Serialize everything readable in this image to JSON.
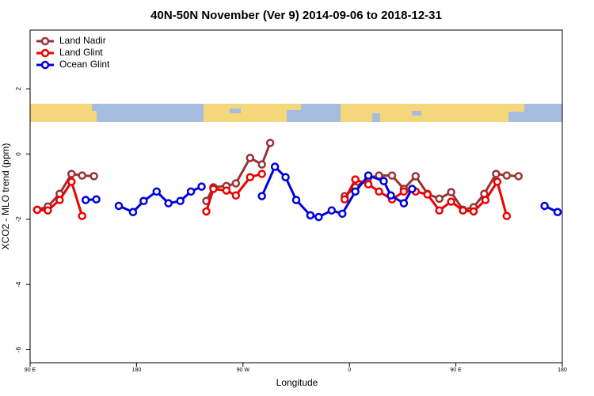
{
  "chart_data": {
    "type": "line",
    "title": "40N-50N November (Ver 9)   2014-09-06 to 2018-12-31",
    "x_label": "Longitude",
    "y_label": "XCO2 - MLO trend (ppm)",
    "xlim": [
      90,
      540
    ],
    "ylim": [
      -6.4,
      3.8
    ],
    "xticks": [
      {
        "value": 90,
        "label": "90 E"
      },
      180,
      {
        "value": 270,
        "label": "90 W"
      },
      {
        "value": 360,
        "label": "0"
      },
      {
        "value": 450,
        "label": "90 E"
      },
      180
    ],
    "yticks": [
      -6,
      -4,
      -2,
      0,
      2
    ],
    "legend": "top-left",
    "series": [
      {
        "name": "Land Nadir",
        "color": "#993333",
        "x": [
          96,
          105,
          115,
          125,
          134,
          144,
          190,
          239,
          245,
          256,
          264,
          276,
          286,
          293,
          325,
          356,
          365,
          376,
          385,
          396,
          406,
          416,
          426,
          436,
          446,
          456,
          465,
          474,
          484,
          493,
          503
        ],
        "values": [
          -1.71,
          -1.61,
          -1.22,
          -0.61,
          -0.66,
          -0.68,
          null,
          -1.44,
          -1.02,
          -0.98,
          -0.9,
          -0.12,
          -0.32,
          0.34,
          null,
          -1.29,
          -1.02,
          -0.73,
          -0.66,
          -0.66,
          -1.07,
          -0.68,
          -1.22,
          -1.37,
          -1.17,
          -1.71,
          -1.63,
          -1.22,
          -0.61,
          -0.66,
          -0.68
        ]
      },
      {
        "name": "Land Glint",
        "color": "#ee0000",
        "x": [
          96,
          105,
          115,
          125,
          134,
          190,
          239,
          245,
          256,
          264,
          276,
          286,
          320,
          356,
          365,
          376,
          385,
          396,
          406,
          416,
          426,
          436,
          446,
          456,
          465,
          475,
          485,
          493
        ],
        "values": [
          -1.71,
          -1.73,
          -1.41,
          -0.85,
          -1.9,
          null,
          -1.76,
          -1.07,
          -1.12,
          -1.27,
          -0.71,
          -0.61,
          null,
          -1.39,
          -0.78,
          -0.93,
          -1.15,
          -1.39,
          -1.15,
          -1.15,
          -1.24,
          -1.73,
          -1.46,
          -1.73,
          -1.76,
          -1.41,
          -0.85,
          -1.9
        ]
      },
      {
        "name": "Ocean Glint",
        "color": "#0000dd",
        "x": [
          137,
          146,
          155,
          165,
          177,
          186,
          197,
          207,
          217,
          226,
          235,
          260,
          286,
          297,
          306,
          315,
          327,
          334,
          345,
          354,
          365,
          376,
          389,
          395,
          406,
          413,
          470,
          525,
          536
        ],
        "values": [
          -1.41,
          -1.39,
          null,
          -1.59,
          -1.78,
          -1.44,
          -1.15,
          -1.51,
          -1.44,
          -1.15,
          -1.0,
          null,
          -1.29,
          -0.39,
          -0.71,
          -1.41,
          -1.88,
          -1.93,
          -1.73,
          -1.83,
          -1.15,
          -0.66,
          -0.83,
          -1.27,
          -1.51,
          -1.07,
          null,
          -1.59,
          -1.78
        ]
      }
    ]
  }
}
